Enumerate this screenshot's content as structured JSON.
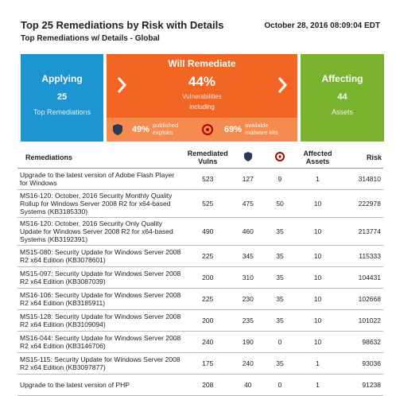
{
  "header": {
    "title": "Top 25 Remediations by Risk with Details",
    "subtitle": "Top Remediations w/ Details - Global",
    "date": "October 28, 2016 08:09:04 EDT"
  },
  "tiles": {
    "applying": {
      "title": "Applying",
      "value": 25,
      "label": "Top Remediations"
    },
    "will_remediate": {
      "title": "Will Remediate",
      "value": "44%",
      "line1": "Vulnerabilities",
      "line2": "including",
      "exploits_value": "49%",
      "exploits_label": "published exploits",
      "malware_value": "69%",
      "malware_label": "available malware kits"
    },
    "affecting": {
      "title": "Affecting",
      "value": 44,
      "label": "Assets"
    }
  },
  "table": {
    "headers": {
      "remediations": "Remediations",
      "vulns": "Remediated Vulns",
      "assets": "Affected Assets",
      "risk": "Risk"
    },
    "rows": [
      [
        "Upgrade to the latest version of Adobe Flash Player for Windows",
        523,
        127,
        9,
        1,
        314810
      ],
      [
        "MS16-120: October, 2016 Security Monthly Quality Rollup for Windows Server 2008 R2 for x64-based Systems (KB3185330)",
        525,
        475,
        50,
        10,
        222978
      ],
      [
        "MS16-120: October, 2016 Security Only Quality Update for Windows Server 2008 R2 for x64-based Systems (KB3192391)",
        490,
        460,
        35,
        10,
        213774
      ],
      [
        "MS15-080: Security Update for Windows Server 2008 R2 x64 Edition (KB3078601)",
        225,
        345,
        35,
        10,
        115333
      ],
      [
        "MS15-097: Security Update for Windows Server 2008 R2 x64 Edition (KB3087039)",
        200,
        310,
        35,
        10,
        104431
      ],
      [
        "MS16-106: Security Update for Windows Server 2008 R2 x64 Edition (KB3185911)",
        225,
        230,
        35,
        10,
        102668
      ],
      [
        "MS15-128: Security Update for Windows Server 2008 R2 x64 Edition (KB3109094)",
        200,
        235,
        35,
        10,
        101022
      ],
      [
        "MS16-044: Security Update for Windows Server 2008 R2 x64 Edition (KB3146706)",
        240,
        190,
        0,
        10,
        98632
      ],
      [
        "MS15-115: Security Update for Windows Server 2008 R2 x64 Edition (KB3097877)",
        175,
        240,
        35,
        1,
        93036
      ],
      [
        "Upgrade to the latest version of PHP",
        208,
        40,
        0,
        1,
        91238
      ]
    ]
  }
}
